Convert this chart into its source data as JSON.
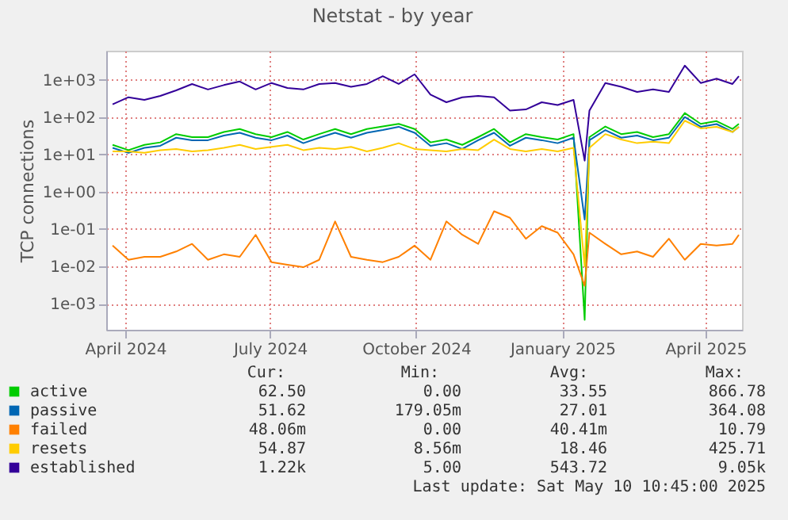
{
  "chart_data": {
    "type": "line",
    "title": "Netstat - by year",
    "ylabel": "TCP connections",
    "x": [
      "2024-03-24",
      "2024-04-03",
      "2024-04-13",
      "2024-04-23",
      "2024-05-03",
      "2024-05-13",
      "2024-05-23",
      "2024-06-02",
      "2024-06-12",
      "2024-06-22",
      "2024-07-02",
      "2024-07-12",
      "2024-07-22",
      "2024-08-01",
      "2024-08-11",
      "2024-08-21",
      "2024-08-31",
      "2024-09-10",
      "2024-09-20",
      "2024-09-30",
      "2024-10-10",
      "2024-10-20",
      "2024-10-30",
      "2024-11-09",
      "2024-11-19",
      "2024-11-29",
      "2024-12-09",
      "2024-12-19",
      "2024-12-29",
      "2025-01-08",
      "2025-01-15",
      "2025-01-18",
      "2025-01-28",
      "2025-02-07",
      "2025-02-17",
      "2025-02-27",
      "2025-03-09",
      "2025-03-19",
      "2025-03-29",
      "2025-04-08",
      "2025-04-18",
      "2025-04-22"
    ],
    "series": [
      {
        "name": "active",
        "color": "#00cc00",
        "values": [
          18,
          13,
          18,
          21,
          35,
          29,
          29,
          40,
          48,
          35,
          29,
          40,
          25,
          35,
          48,
          35,
          48,
          56,
          66,
          48,
          21,
          25,
          18,
          29,
          48,
          21,
          35,
          29,
          25,
          35,
          0.00037,
          29,
          56,
          35,
          40,
          29,
          35,
          128,
          66,
          78,
          48,
          66
        ]
      },
      {
        "name": "passive",
        "color": "#0066b3",
        "values": [
          15,
          11,
          15,
          17,
          28,
          24,
          24,
          32,
          38,
          28,
          24,
          32,
          20,
          28,
          38,
          28,
          38,
          45,
          55,
          38,
          17,
          20,
          14,
          24,
          38,
          17,
          28,
          24,
          20,
          28,
          0.18,
          24,
          45,
          28,
          32,
          24,
          28,
          100,
          55,
          65,
          40,
          55
        ]
      },
      {
        "name": "failed",
        "color": "#ff8000",
        "values": [
          0.036,
          0.015,
          0.018,
          0.018,
          0.025,
          0.04,
          0.015,
          0.021,
          0.018,
          0.07,
          0.013,
          0.011,
          0.0095,
          0.015,
          0.16,
          0.018,
          0.015,
          0.013,
          0.018,
          0.036,
          0.015,
          0.16,
          0.07,
          0.04,
          0.3,
          0.2,
          0.055,
          0.12,
          0.08,
          0.021,
          0.003,
          0.08,
          0.04,
          0.021,
          0.025,
          0.018,
          0.055,
          0.015,
          0.04,
          0.036,
          0.04,
          0.07
        ]
      },
      {
        "name": "resets",
        "color": "#ffcc00",
        "values": [
          12,
          12,
          11,
          13,
          14,
          12,
          13,
          15,
          18,
          14,
          16,
          18,
          13,
          15,
          14,
          16,
          12,
          15,
          20,
          14,
          13,
          12,
          14,
          13,
          25,
          14,
          12,
          14,
          12,
          15,
          0.01,
          15,
          35,
          25,
          20,
          22,
          20,
          80,
          50,
          55,
          40,
          55
        ]
      },
      {
        "name": "established",
        "color": "#330099",
        "values": [
          220,
          340,
          290,
          370,
          520,
          770,
          550,
          720,
          900,
          550,
          820,
          600,
          550,
          770,
          820,
          650,
          770,
          1250,
          770,
          1400,
          400,
          250,
          340,
          370,
          340,
          150,
          160,
          250,
          210,
          290,
          6.8,
          150,
          820,
          650,
          470,
          550,
          470,
          2400,
          820,
          1070,
          770,
          1250
        ]
      }
    ],
    "log": "y",
    "ylim": [
      0.0002,
      6000
    ],
    "yticks": [
      {
        "value": 0.001,
        "label": "1e-03"
      },
      {
        "value": 0.01,
        "label": "1e-02"
      },
      {
        "value": 0.1,
        "label": "1e-01"
      },
      {
        "value": 1,
        "label": "1e+00"
      },
      {
        "value": 10,
        "label": "1e+01"
      },
      {
        "value": 100,
        "label": "1e+02"
      },
      {
        "value": 1000,
        "label": "1e+03"
      }
    ],
    "xlim": [
      "2024-03-20",
      "2025-04-24"
    ],
    "xticks": [
      {
        "value": "2024-04-01",
        "label": "April 2024"
      },
      {
        "value": "2024-07-01",
        "label": "July 2024"
      },
      {
        "value": "2024-10-01",
        "label": "October 2024"
      },
      {
        "value": "2025-01-01",
        "label": "January 2025"
      },
      {
        "value": "2025-04-01",
        "label": "April 2025"
      }
    ],
    "grid": true,
    "legend": "bottom",
    "line_style": "solid",
    "marker": "none",
    "annotations": [
      "Cur:",
      "Min:",
      "Avg:",
      "Max:",
      "62.50",
      "0.00",
      "33.55",
      "866.78",
      "51.62",
      "179.05m",
      "27.01",
      "364.08",
      "48.06m",
      "0.00",
      "40.41m",
      "10.79",
      "54.87",
      "8.56m",
      "18.46",
      "425.71",
      "1.22k",
      "5.00",
      "543.72",
      "9.05k",
      "Last update: Sat May 10 10:45:00 2025"
    ]
  }
}
